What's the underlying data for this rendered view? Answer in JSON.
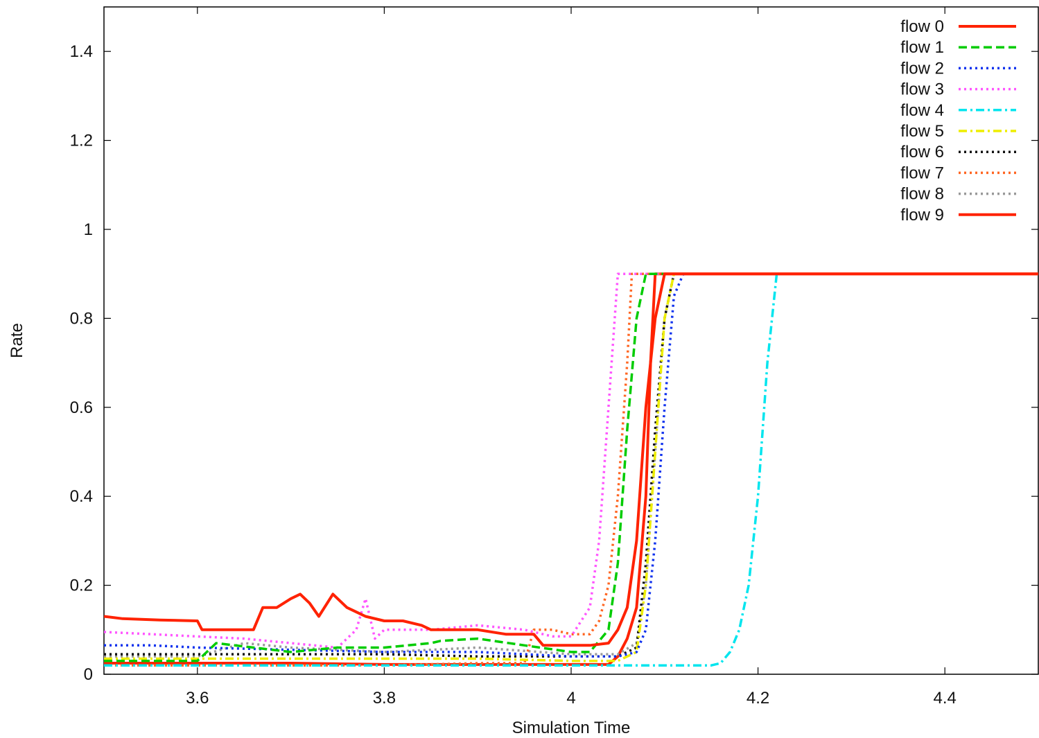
{
  "chart_data": {
    "type": "line",
    "title": "",
    "xlabel": "Simulation Time",
    "ylabel": "Rate",
    "xlim": [
      3.5,
      4.5
    ],
    "ylim": [
      0,
      1.5
    ],
    "xticks": [
      3.6,
      3.8,
      4.0,
      4.2,
      4.4
    ],
    "xtick_labels": [
      "3.6",
      "3.8",
      "4",
      "4.2",
      "4.4"
    ],
    "yticks": [
      0,
      0.2,
      0.4,
      0.6,
      0.8,
      1.0,
      1.2,
      1.4
    ],
    "ytick_labels": [
      "0",
      "0.2",
      "0.4",
      "0.6",
      "0.8",
      "1",
      "1.2",
      "1.4"
    ],
    "grid": false,
    "legend_position": "top-right",
    "series": [
      {
        "name": "flow 0",
        "color": "#ff2200",
        "dash": "solid",
        "x": [
          3.5,
          3.52,
          3.56,
          3.6,
          3.605,
          3.62,
          3.64,
          3.66,
          3.67,
          3.685,
          3.7,
          3.71,
          3.72,
          3.73,
          3.745,
          3.76,
          3.78,
          3.8,
          3.82,
          3.84,
          3.85,
          3.86,
          3.88,
          3.9,
          3.93,
          3.96,
          3.97,
          4.0,
          4.02,
          4.04,
          4.05,
          4.06,
          4.07,
          4.08,
          4.09,
          4.1,
          4.5
        ],
        "y": [
          0.13,
          0.125,
          0.122,
          0.12,
          0.1,
          0.1,
          0.1,
          0.1,
          0.15,
          0.15,
          0.17,
          0.18,
          0.16,
          0.13,
          0.18,
          0.15,
          0.13,
          0.12,
          0.12,
          0.11,
          0.1,
          0.1,
          0.1,
          0.1,
          0.09,
          0.09,
          0.065,
          0.065,
          0.065,
          0.07,
          0.1,
          0.15,
          0.3,
          0.6,
          0.8,
          0.9,
          0.9
        ]
      },
      {
        "name": "flow 1",
        "color": "#00cc00",
        "dash": "dashed",
        "x": [
          3.5,
          3.55,
          3.6,
          3.62,
          3.66,
          3.7,
          3.75,
          3.8,
          3.85,
          3.86,
          3.9,
          3.95,
          4.0,
          4.02,
          4.04,
          4.05,
          4.06,
          4.07,
          4.08,
          4.5
        ],
        "y": [
          0.03,
          0.03,
          0.03,
          0.07,
          0.06,
          0.05,
          0.06,
          0.06,
          0.07,
          0.075,
          0.08,
          0.065,
          0.05,
          0.05,
          0.1,
          0.25,
          0.55,
          0.8,
          0.9,
          0.9
        ]
      },
      {
        "name": "flow 2",
        "color": "#1133ee",
        "dash": "dotted",
        "x": [
          3.5,
          3.55,
          3.6,
          3.7,
          3.8,
          3.9,
          4.0,
          4.05,
          4.07,
          4.08,
          4.09,
          4.1,
          4.11,
          4.12,
          4.5
        ],
        "y": [
          0.065,
          0.065,
          0.06,
          0.055,
          0.05,
          0.05,
          0.04,
          0.04,
          0.05,
          0.1,
          0.3,
          0.6,
          0.85,
          0.9,
          0.9
        ]
      },
      {
        "name": "flow 3",
        "color": "#ff55ff",
        "dash": "dotted",
        "x": [
          3.5,
          3.55,
          3.6,
          3.65,
          3.7,
          3.75,
          3.77,
          3.78,
          3.79,
          3.8,
          3.85,
          3.9,
          3.95,
          3.98,
          4.0,
          4.02,
          4.03,
          4.04,
          4.05,
          4.5
        ],
        "y": [
          0.095,
          0.09,
          0.085,
          0.08,
          0.07,
          0.06,
          0.1,
          0.17,
          0.08,
          0.1,
          0.1,
          0.11,
          0.1,
          0.085,
          0.085,
          0.15,
          0.3,
          0.6,
          0.9,
          0.9
        ]
      },
      {
        "name": "flow 4",
        "color": "#00e5ee",
        "dash": "dashdot",
        "x": [
          3.5,
          3.6,
          3.7,
          3.8,
          3.9,
          4.0,
          4.05,
          4.1,
          4.15,
          4.16,
          4.17,
          4.18,
          4.19,
          4.2,
          4.21,
          4.22,
          4.5
        ],
        "y": [
          0.02,
          0.02,
          0.02,
          0.02,
          0.02,
          0.02,
          0.02,
          0.02,
          0.02,
          0.025,
          0.05,
          0.1,
          0.2,
          0.4,
          0.7,
          0.9,
          0.9
        ]
      },
      {
        "name": "flow 5",
        "color": "#eeee00",
        "dash": "dashdot",
        "x": [
          3.5,
          3.6,
          3.7,
          3.8,
          3.9,
          4.0,
          4.05,
          4.07,
          4.08,
          4.09,
          4.1,
          4.11,
          4.5
        ],
        "y": [
          0.035,
          0.035,
          0.035,
          0.035,
          0.035,
          0.03,
          0.03,
          0.05,
          0.2,
          0.5,
          0.8,
          0.9,
          0.9
        ]
      },
      {
        "name": "flow 6",
        "color": "#111111",
        "dash": "dotted",
        "x": [
          3.5,
          3.6,
          3.7,
          3.8,
          3.9,
          4.0,
          4.05,
          4.07,
          4.08,
          4.09,
          4.1,
          4.11,
          4.5
        ],
        "y": [
          0.045,
          0.045,
          0.045,
          0.045,
          0.04,
          0.04,
          0.04,
          0.06,
          0.25,
          0.55,
          0.8,
          0.9,
          0.9
        ]
      },
      {
        "name": "flow 7",
        "color": "#ff6622",
        "dash": "dotted",
        "x": [
          3.5,
          3.6,
          3.7,
          3.8,
          3.9,
          3.95,
          3.96,
          3.98,
          4.0,
          4.02,
          4.03,
          4.04,
          4.05,
          4.06,
          4.065,
          4.5
        ],
        "y": [
          0.02,
          0.02,
          0.02,
          0.02,
          0.025,
          0.025,
          0.1,
          0.1,
          0.09,
          0.09,
          0.12,
          0.2,
          0.4,
          0.7,
          0.9,
          0.9
        ]
      },
      {
        "name": "flow 8",
        "color": "#999999",
        "dash": "dotted",
        "x": [
          3.5,
          3.6,
          3.65,
          3.7,
          3.8,
          3.9,
          4.0,
          4.05,
          4.07,
          4.08,
          4.09,
          4.1,
          4.11,
          4.5
        ],
        "y": [
          0.04,
          0.04,
          0.07,
          0.06,
          0.05,
          0.06,
          0.045,
          0.045,
          0.07,
          0.2,
          0.5,
          0.8,
          0.9,
          0.9
        ]
      },
      {
        "name": "flow 9",
        "color": "#ff2200",
        "dash": "solid",
        "x": [
          3.5,
          3.6,
          3.7,
          3.8,
          3.9,
          4.0,
          4.04,
          4.05,
          4.06,
          4.07,
          4.08,
          4.085,
          4.09,
          4.5
        ],
        "y": [
          0.025,
          0.025,
          0.025,
          0.022,
          0.022,
          0.022,
          0.022,
          0.04,
          0.08,
          0.15,
          0.4,
          0.7,
          0.9,
          0.9
        ]
      }
    ]
  }
}
